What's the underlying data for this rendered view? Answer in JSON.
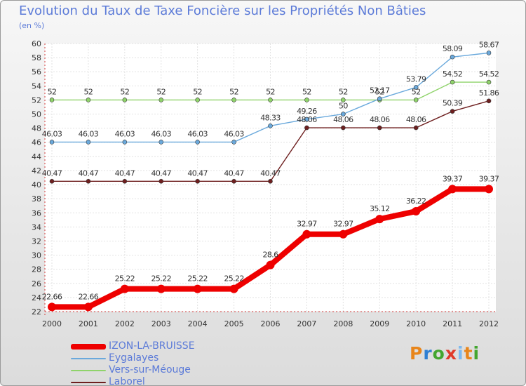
{
  "title": "Evolution du Taux de Taxe Foncière sur les Propriétés Non Bâties",
  "unit": "(en %)",
  "logo": {
    "letters": [
      "P",
      "r",
      "o",
      "x",
      "i",
      "t",
      "i"
    ],
    "colors": [
      "#e8851a",
      "#2f7fd3",
      "#43a62f",
      "#e03a2a",
      "#7db9ef",
      "#e8851a",
      "#43a62f"
    ]
  },
  "chart_data": {
    "type": "line",
    "title": "Evolution du Taux de Taxe Foncière sur les Propriétés Non Bâties",
    "ylabel": "(en %)",
    "xlabel": "",
    "ylim": [
      22,
      60
    ],
    "yticks": [
      22,
      24,
      26,
      28,
      30,
      32,
      34,
      36,
      38,
      40,
      42,
      44,
      46,
      48,
      50,
      52,
      54,
      56,
      58,
      60
    ],
    "grid": true,
    "legend_position": "bottom-left",
    "x": [
      "2000",
      "2001",
      "2002",
      "2003",
      "2004",
      "2005",
      "2006",
      "2007",
      "2008",
      "2009",
      "2010",
      "2011",
      "2012"
    ],
    "series": [
      {
        "name": "Laborel",
        "color": "#6e1f1f",
        "values": [
          40.47,
          40.47,
          40.47,
          40.47,
          40.47,
          40.47,
          40.47,
          48.06,
          48.06,
          48.06,
          48.06,
          50.39,
          51.86
        ],
        "labels": [
          "40.47",
          "40.47",
          "40.47",
          "40.47",
          "40.47",
          "40.47",
          "40.47",
          "48.06",
          "48.06",
          "48.06",
          "48.06",
          "50.39",
          "51.86"
        ]
      },
      {
        "name": "Vers-sur-Méouge",
        "color": "#8fd36a",
        "values": [
          52,
          52,
          52,
          52,
          52,
          52,
          52,
          52,
          52,
          52,
          52,
          54.52,
          54.52
        ],
        "labels": [
          "52",
          "52",
          "52",
          "52",
          "52",
          "52",
          "52",
          "52",
          "52",
          "52",
          "52",
          "54.52",
          "54.52"
        ]
      },
      {
        "name": "Eygalayes",
        "color": "#6aa9dc",
        "values": [
          46.03,
          46.03,
          46.03,
          46.03,
          46.03,
          46.03,
          48.33,
          49.26,
          50,
          52.17,
          53.79,
          58.09,
          58.67
        ],
        "labels": [
          "46.03",
          "46.03",
          "46.03",
          "46.03",
          "46.03",
          "46.03",
          "48.33",
          "49.26",
          "50",
          "52.17",
          "53.79",
          "58.09",
          "58.67"
        ]
      },
      {
        "name": "IZON-LA-BRUISSE",
        "color": "#ee0000",
        "values": [
          22.66,
          22.66,
          25.22,
          25.22,
          25.22,
          25.22,
          28.6,
          32.97,
          32.97,
          35.12,
          36.22,
          39.37,
          39.37
        ],
        "labels": [
          "22.66",
          "22.66",
          "25.22",
          "25.22",
          "25.22",
          "25.22",
          "28.6",
          "32.97",
          "32.97",
          "35.12",
          "36.22",
          "39.37",
          "39.37"
        ]
      }
    ],
    "legend": [
      "IZON-LA-BRUISSE",
      "Eygalayes",
      "Vers-sur-Méouge",
      "Laborel"
    ]
  }
}
